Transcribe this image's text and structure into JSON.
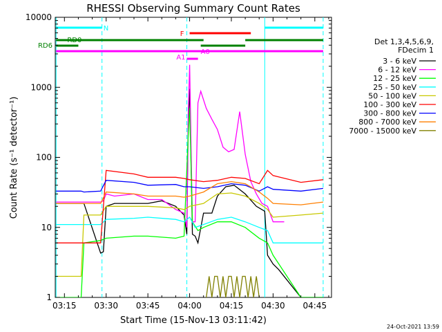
{
  "chart_data": {
    "type": "line",
    "title": "RHESSI Observing Summary Count Rates",
    "xlabel": "Start Time (15-Nov-13 03:11:42)",
    "ylabel": "Count Rate (s⁻¹ detector⁻¹)",
    "x_range": [
      "03:11:42",
      "04:51:00"
    ],
    "y_scale": "log",
    "ylim": [
      1,
      10000
    ],
    "x_ticks": [
      "03:15",
      "03:30",
      "03:45",
      "04:00",
      "04:15",
      "04:30",
      "04:45"
    ],
    "y_ticks": [
      "1",
      "10",
      "100",
      "1000",
      "10000"
    ],
    "legend_header": [
      "Det 1,3,4,5,6,9,",
      "FDecim 1"
    ],
    "legend_placement": "right",
    "series": [
      {
        "name": "3 - 6 keV",
        "color": "#000000",
        "x": [
          "03:12",
          "03:21",
          "03:22",
          "03:28",
          "03:29",
          "03:30",
          "03:33",
          "03:40",
          "03:45",
          "03:50",
          "03:55",
          "03:58",
          "03:59",
          "03:59:30",
          "04:00",
          "04:01",
          "04:02",
          "04:03",
          "04:05",
          "04:08",
          "04:10",
          "04:13",
          "04:16",
          "04:20",
          "04:24",
          "04:27",
          "04:28",
          "04:30",
          "04:32",
          "04:40",
          "04:48"
        ],
        "values": [
          22,
          22,
          22,
          4.3,
          4.5,
          20,
          22,
          22,
          22,
          24,
          20,
          15,
          8,
          300,
          950,
          8,
          7.5,
          6,
          16,
          16,
          28,
          38,
          40,
          30,
          20,
          17,
          4,
          3,
          2.5,
          1,
          1
        ]
      },
      {
        "name": "6 - 12 keV",
        "color": "#ff00ff",
        "x": [
          "03:12",
          "03:21",
          "03:22",
          "03:28",
          "03:29",
          "03:30",
          "03:33",
          "03:40",
          "03:45",
          "03:50",
          "03:55",
          "03:58",
          "03:59",
          "03:59:30",
          "04:00",
          "04:01",
          "04:02",
          "04:03",
          "04:04",
          "04:06",
          "04:08",
          "04:10",
          "04:12",
          "04:14",
          "04:16",
          "04:18",
          "04:20",
          "04:22",
          "04:24",
          "04:26",
          "04:28",
          "04:30",
          "04:34"
        ],
        "values": [
          23,
          23,
          23,
          23,
          24,
          30,
          28,
          30,
          25,
          25,
          18,
          16,
          10,
          400,
          2100,
          12,
          12,
          600,
          880,
          500,
          350,
          250,
          140,
          120,
          130,
          450,
          110,
          45,
          30,
          22,
          20,
          12,
          12
        ]
      },
      {
        "name": "12 - 25 keV",
        "color": "#00ff00",
        "x": [
          "03:12",
          "03:21",
          "03:22",
          "03:28",
          "03:30",
          "03:40",
          "03:45",
          "03:55",
          "03:58",
          "03:59:30",
          "04:00",
          "04:01",
          "04:03",
          "04:05",
          "04:10",
          "04:15",
          "04:20",
          "04:25",
          "04:28",
          "04:30",
          "04:40",
          "04:48"
        ],
        "values": [
          1,
          1,
          6,
          6.5,
          7,
          7.5,
          7.5,
          7,
          7.5,
          200,
          500,
          12,
          9,
          10,
          12,
          12,
          10,
          7,
          6,
          4,
          1,
          1
        ]
      },
      {
        "name": "25 - 50 keV",
        "color": "#00ffff",
        "x": [
          "03:12",
          "03:21",
          "03:22",
          "03:28",
          "03:30",
          "03:40",
          "03:45",
          "03:55",
          "03:58",
          "04:00",
          "04:02",
          "04:05",
          "04:10",
          "04:15",
          "04:20",
          "04:25",
          "04:28",
          "04:30",
          "04:48"
        ],
        "values": [
          11,
          11,
          11,
          11,
          13,
          13.5,
          14,
          13,
          12,
          14,
          10,
          11,
          13,
          14,
          12,
          10,
          9,
          6,
          6
        ]
      },
      {
        "name": "50 - 100 keV",
        "color": "#c8c800",
        "x": [
          "03:12",
          "03:21",
          "03:22",
          "03:28",
          "03:30",
          "03:40",
          "03:45",
          "03:55",
          "03:58",
          "04:00",
          "04:05",
          "04:10",
          "04:15",
          "04:20",
          "04:25",
          "04:28",
          "04:30",
          "04:40",
          "04:48"
        ],
        "values": [
          2,
          2,
          15,
          15,
          20,
          20,
          20,
          19,
          18,
          20,
          22,
          30,
          31,
          28,
          22,
          18,
          14,
          15,
          16
        ]
      },
      {
        "name": "100 - 300 keV",
        "color": "#ff0000",
        "x": [
          "03:12",
          "03:21",
          "03:22",
          "03:28",
          "03:30",
          "03:40",
          "03:45",
          "03:55",
          "03:58",
          "04:00",
          "04:05",
          "04:10",
          "04:15",
          "04:20",
          "04:25",
          "04:28",
          "04:30",
          "04:40",
          "04:48"
        ],
        "values": [
          6,
          6,
          6,
          6,
          65,
          58,
          52,
          52,
          50,
          48,
          45,
          47,
          52,
          50,
          42,
          65,
          55,
          44,
          48
        ]
      },
      {
        "name": "300 - 800 keV",
        "color": "#0000ff",
        "x": [
          "03:12",
          "03:21",
          "03:22",
          "03:28",
          "03:30",
          "03:40",
          "03:45",
          "03:55",
          "03:58",
          "04:00",
          "04:05",
          "04:10",
          "04:15",
          "04:20",
          "04:25",
          "04:28",
          "04:30",
          "04:40",
          "04:48"
        ],
        "values": [
          33,
          33,
          32,
          33,
          47,
          44,
          40,
          41,
          38,
          38,
          36,
          38,
          42,
          40,
          33,
          38,
          35,
          33,
          36
        ]
      },
      {
        "name": "800 - 7000 keV",
        "color": "#ff7f00",
        "x": [
          "03:12",
          "03:21",
          "03:22",
          "03:28",
          "03:30",
          "03:40",
          "03:45",
          "03:55",
          "03:58",
          "04:00",
          "04:05",
          "04:10",
          "04:15",
          "04:20",
          "04:25",
          "04:28",
          "04:30",
          "04:40",
          "04:48"
        ],
        "values": [
          22,
          22,
          22,
          22,
          32,
          30,
          28,
          28,
          27,
          28,
          32,
          42,
          45,
          42,
          32,
          26,
          22,
          21,
          23
        ]
      },
      {
        "name": "7000 - 15000 keV",
        "color": "#808000",
        "x": [
          "04:06",
          "04:07",
          "04:08",
          "04:09",
          "04:10",
          "04:11",
          "04:12",
          "04:13",
          "04:14",
          "04:15",
          "04:16",
          "04:17",
          "04:18",
          "04:19",
          "04:20",
          "04:21",
          "04:22",
          "04:23",
          "04:24",
          "04:25"
        ],
        "values": [
          1,
          2,
          1,
          2,
          2,
          1,
          2,
          1,
          2,
          2,
          1,
          2,
          1,
          2,
          2,
          1,
          2,
          1,
          2,
          1
        ]
      }
    ],
    "attenuator_segments": [
      {
        "label": "N",
        "color": "#00ffff",
        "rows": [
          {
            "start": "03:12",
            "end": "03:28:30"
          },
          {
            "start": "04:27",
            "end": "04:48"
          }
        ]
      },
      {
        "label": "F",
        "color": "#ff0000",
        "rows": [
          {
            "start": "04:00",
            "end": "04:22"
          }
        ]
      },
      {
        "label": "RD0",
        "color": "#008000",
        "rows": [
          {
            "start": "03:12",
            "end": "04:05"
          },
          {
            "start": "04:20",
            "end": "04:48"
          }
        ]
      },
      {
        "label": "RD6",
        "color": "#008000",
        "rows": [
          {
            "start": "03:12",
            "end": "03:20"
          },
          {
            "start": "04:04",
            "end": "04:20"
          }
        ]
      },
      {
        "label": "A0",
        "color": "#ff00ff",
        "rows": [
          {
            "start": "03:12",
            "end": "04:48"
          }
        ]
      },
      {
        "label": "A1",
        "color": "#ff00ff",
        "rows": [
          {
            "start": "03:59",
            "end": "04:03"
          }
        ]
      }
    ],
    "vertical_lines": [
      {
        "time": "03:12",
        "style": "solid",
        "color": "#00ffff"
      },
      {
        "time": "03:28:30",
        "style": "dashed",
        "color": "#00ffff"
      },
      {
        "time": "03:59",
        "style": "dashed",
        "color": "#00ffff"
      },
      {
        "time": "04:27",
        "style": "solid",
        "color": "#00ffff"
      },
      {
        "time": "04:48",
        "style": "dashed",
        "color": "#00ffff"
      }
    ],
    "footer_timestamp": "24-Oct-2021 13:59"
  }
}
